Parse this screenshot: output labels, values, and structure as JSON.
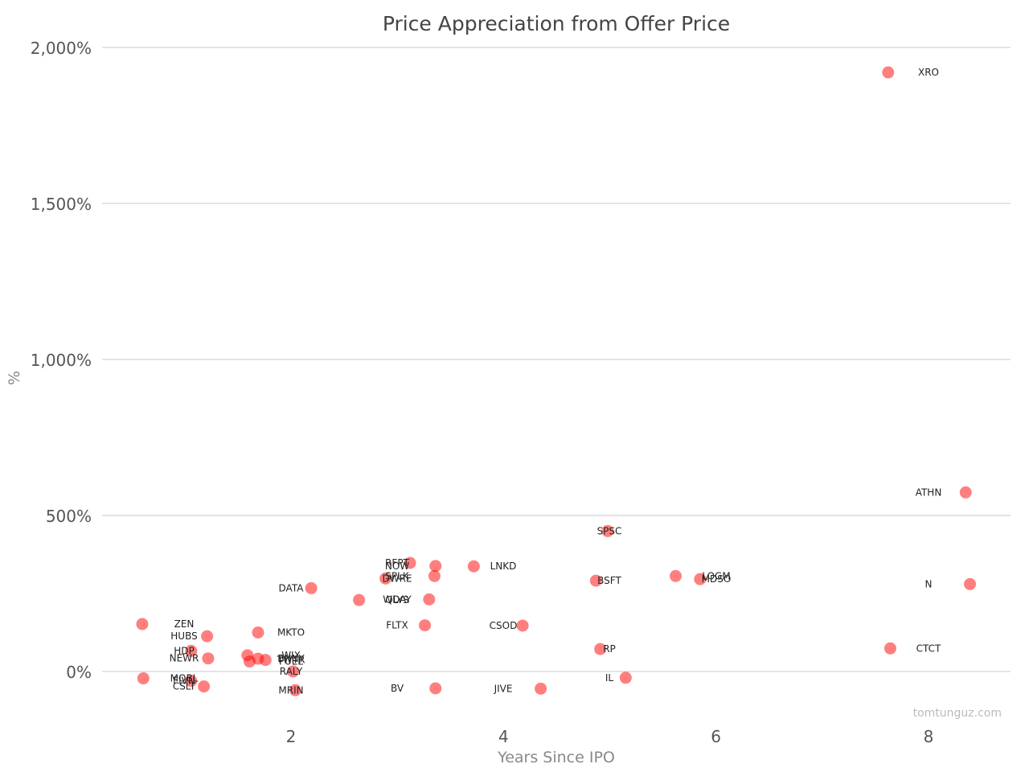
{
  "chart_data": {
    "type": "scatter",
    "title": "Price Appreciation from Offer Price",
    "xlabel": "Years Since IPO",
    "ylabel": "%",
    "xlim": [
      0.3,
      8.6
    ],
    "ylim": [
      -100,
      2000
    ],
    "x_ticks": [
      2,
      4,
      6,
      8
    ],
    "x_tick_labels": [
      "2",
      "4",
      "6",
      "8"
    ],
    "y_ticks": [
      0,
      500,
      1000,
      1500,
      2000
    ],
    "y_tick_labels": [
      "0%",
      "500%",
      "1,000%",
      "1,500%",
      "2,000%"
    ],
    "grid": "horizontal",
    "point_color": "#ff0000",
    "credit": "tomtunguz.com",
    "points": [
      {
        "label": "XRO",
        "x": 7.62,
        "y": 1920
      },
      {
        "label": "ATHN",
        "x": 8.35,
        "y": 574
      },
      {
        "label": "SPSC",
        "x": 4.98,
        "y": 450
      },
      {
        "label": "N",
        "x": 8.39,
        "y": 280
      },
      {
        "label": "CTCT",
        "x": 7.64,
        "y": 74
      },
      {
        "label": "LOGM",
        "x": 5.62,
        "y": 306
      },
      {
        "label": "MDSO",
        "x": 5.85,
        "y": 296
      },
      {
        "label": "BSFT",
        "x": 4.87,
        "y": 291
      },
      {
        "label": "RP",
        "x": 4.91,
        "y": 72
      },
      {
        "label": "IL",
        "x": 5.15,
        "y": -20
      },
      {
        "label": "LNKD",
        "x": 3.72,
        "y": 337
      },
      {
        "label": "CSOD",
        "x": 4.18,
        "y": 147
      },
      {
        "label": "JIVE",
        "x": 4.35,
        "y": -55
      },
      {
        "label": "RFPT",
        "x": 3.12,
        "y": 348
      },
      {
        "label": "NOW",
        "x": 3.36,
        "y": 338
      },
      {
        "label": "SPLK",
        "x": 3.35,
        "y": 306
      },
      {
        "label": "DWRE",
        "x": 2.89,
        "y": 298
      },
      {
        "label": "WDAY",
        "x": 3.3,
        "y": 231
      },
      {
        "label": "QLYS",
        "x": 2.64,
        "y": 229
      },
      {
        "label": "FLTX",
        "x": 3.26,
        "y": 148
      },
      {
        "label": "BV",
        "x": 3.36,
        "y": -54
      },
      {
        "label": "DATA",
        "x": 2.19,
        "y": 267
      },
      {
        "label": "MKTO",
        "x": 1.69,
        "y": 125
      },
      {
        "label": "WIX",
        "x": 1.59,
        "y": 52
      },
      {
        "label": "BNNY",
        "x": 1.69,
        "y": 41
      },
      {
        "label": "TWTR",
        "x": 1.76,
        "y": 37
      },
      {
        "label": "FUEL",
        "x": 1.61,
        "y": 32
      },
      {
        "label": "RALY",
        "x": 2.02,
        "y": 0
      },
      {
        "label": "MRIN",
        "x": 2.04,
        "y": -60
      },
      {
        "label": "ZEN",
        "x": 0.6,
        "y": 152
      },
      {
        "label": "HUBS",
        "x": 1.21,
        "y": 113
      },
      {
        "label": "HDP",
        "x": 1.06,
        "y": 66
      },
      {
        "label": "NEWR",
        "x": 1.22,
        "y": 42
      },
      {
        "label": "FIVN",
        "x": 1.06,
        "y": -30
      },
      {
        "label": "MOBL",
        "x": 0.61,
        "y": -22
      },
      {
        "label": "CSLT",
        "x": 1.18,
        "y": -48
      }
    ]
  }
}
